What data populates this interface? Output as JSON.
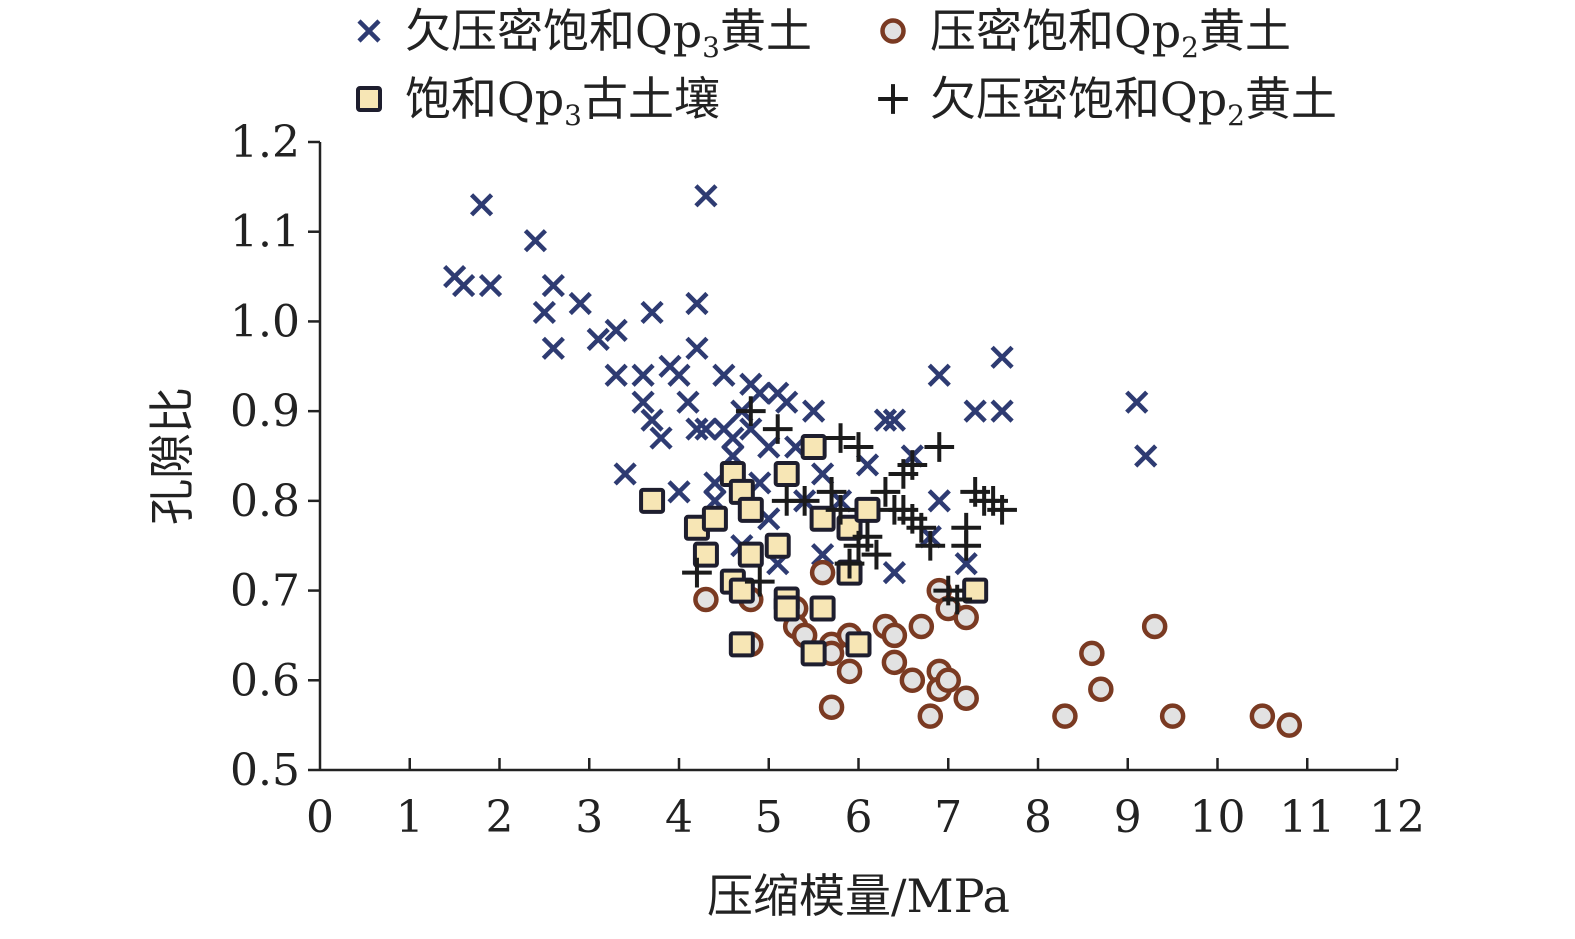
{
  "chart_data": {
    "type": "scatter",
    "xlabel": "压缩模量/MPa",
    "ylabel": "孔隙比",
    "xlim": [
      0,
      12
    ],
    "ylim": [
      0.5,
      1.2
    ],
    "x_ticks": [
      "0",
      "1",
      "2",
      "3",
      "4",
      "5",
      "6",
      "7",
      "8",
      "9",
      "10",
      "11",
      "12"
    ],
    "y_ticks": [
      "0.5",
      "0.6",
      "0.7",
      "0.8",
      "0.9",
      "1.0",
      "1.1",
      "1.2"
    ],
    "grid": false,
    "legend_position": "top",
    "series": [
      {
        "name": "欠压密饱和Qp3黄土",
        "legend": {
          "main": "欠压密饱和Qp",
          "sub": "3",
          "tail": "黄土"
        },
        "marker": "x",
        "color": "#2e3b72",
        "points": [
          [
            1.5,
            1.05
          ],
          [
            1.6,
            1.04
          ],
          [
            1.8,
            1.13
          ],
          [
            1.9,
            1.04
          ],
          [
            2.4,
            1.09
          ],
          [
            2.5,
            1.01
          ],
          [
            2.6,
            1.04
          ],
          [
            2.6,
            0.97
          ],
          [
            2.9,
            1.02
          ],
          [
            3.1,
            0.98
          ],
          [
            3.3,
            0.99
          ],
          [
            3.3,
            0.94
          ],
          [
            3.4,
            0.83
          ],
          [
            3.6,
            0.94
          ],
          [
            3.6,
            0.91
          ],
          [
            3.7,
            1.01
          ],
          [
            3.7,
            0.89
          ],
          [
            3.8,
            0.87
          ],
          [
            3.9,
            0.95
          ],
          [
            4.0,
            0.94
          ],
          [
            4.0,
            0.81
          ],
          [
            4.1,
            0.91
          ],
          [
            4.2,
            0.88
          ],
          [
            4.2,
            1.02
          ],
          [
            4.2,
            0.97
          ],
          [
            4.3,
            1.14
          ],
          [
            4.3,
            0.88
          ],
          [
            4.4,
            0.82
          ],
          [
            4.4,
            0.8
          ],
          [
            4.5,
            0.94
          ],
          [
            4.5,
            0.88
          ],
          [
            4.6,
            0.87
          ],
          [
            4.6,
            0.85
          ],
          [
            4.7,
            0.9
          ],
          [
            4.7,
            0.75
          ],
          [
            4.8,
            0.93
          ],
          [
            4.8,
            0.88
          ],
          [
            4.9,
            0.92
          ],
          [
            4.9,
            0.82
          ],
          [
            5.0,
            0.86
          ],
          [
            5.0,
            0.78
          ],
          [
            5.1,
            0.92
          ],
          [
            5.1,
            0.73
          ],
          [
            5.2,
            0.91
          ],
          [
            5.3,
            0.86
          ],
          [
            5.4,
            0.8
          ],
          [
            5.5,
            0.9
          ],
          [
            5.6,
            0.83
          ],
          [
            5.6,
            0.74
          ],
          [
            5.8,
            0.8
          ],
          [
            6.1,
            0.84
          ],
          [
            6.3,
            0.89
          ],
          [
            6.4,
            0.89
          ],
          [
            6.4,
            0.72
          ],
          [
            6.6,
            0.85
          ],
          [
            6.8,
            0.76
          ],
          [
            6.9,
            0.94
          ],
          [
            6.9,
            0.8
          ],
          [
            7.2,
            0.73
          ],
          [
            7.3,
            0.9
          ],
          [
            7.6,
            0.96
          ],
          [
            7.6,
            0.9
          ],
          [
            9.1,
            0.91
          ],
          [
            9.2,
            0.85
          ]
        ]
      },
      {
        "name": "压密饱和Qp2黄土",
        "legend": {
          "main": "压密饱和Qp",
          "sub": "2",
          "tail": "黄土"
        },
        "marker": "circle",
        "color": "#7a3a22",
        "points": [
          [
            4.3,
            0.69
          ],
          [
            4.8,
            0.69
          ],
          [
            4.8,
            0.64
          ],
          [
            5.3,
            0.68
          ],
          [
            5.3,
            0.66
          ],
          [
            5.4,
            0.65
          ],
          [
            5.6,
            0.72
          ],
          [
            5.7,
            0.64
          ],
          [
            5.7,
            0.63
          ],
          [
            5.7,
            0.57
          ],
          [
            5.9,
            0.65
          ],
          [
            5.9,
            0.61
          ],
          [
            6.3,
            0.66
          ],
          [
            6.4,
            0.65
          ],
          [
            6.4,
            0.62
          ],
          [
            6.6,
            0.6
          ],
          [
            6.7,
            0.66
          ],
          [
            6.8,
            0.56
          ],
          [
            6.9,
            0.7
          ],
          [
            6.9,
            0.61
          ],
          [
            6.9,
            0.59
          ],
          [
            7.0,
            0.68
          ],
          [
            7.0,
            0.6
          ],
          [
            7.2,
            0.67
          ],
          [
            7.2,
            0.58
          ],
          [
            8.3,
            0.56
          ],
          [
            8.6,
            0.63
          ],
          [
            8.7,
            0.59
          ],
          [
            9.3,
            0.66
          ],
          [
            9.5,
            0.56
          ],
          [
            10.5,
            0.56
          ],
          [
            10.8,
            0.55
          ]
        ]
      },
      {
        "name": "饱和Qp3古土壤",
        "legend": {
          "main": "饱和Qp",
          "sub": "3",
          "tail": "古土壤"
        },
        "marker": "square",
        "color": "#1e1e2e",
        "fill": "#f7e6b5",
        "points": [
          [
            3.7,
            0.8
          ],
          [
            4.2,
            0.77
          ],
          [
            4.3,
            0.74
          ],
          [
            4.4,
            0.78
          ],
          [
            4.6,
            0.83
          ],
          [
            4.6,
            0.71
          ],
          [
            4.7,
            0.81
          ],
          [
            4.7,
            0.7
          ],
          [
            4.7,
            0.64
          ],
          [
            4.8,
            0.79
          ],
          [
            4.8,
            0.74
          ],
          [
            5.1,
            0.75
          ],
          [
            5.2,
            0.83
          ],
          [
            5.2,
            0.69
          ],
          [
            5.2,
            0.68
          ],
          [
            5.5,
            0.86
          ],
          [
            5.5,
            0.63
          ],
          [
            5.6,
            0.78
          ],
          [
            5.6,
            0.68
          ],
          [
            5.9,
            0.77
          ],
          [
            5.9,
            0.72
          ],
          [
            6.0,
            0.64
          ],
          [
            6.1,
            0.79
          ],
          [
            7.3,
            0.7
          ]
        ]
      },
      {
        "name": "欠压密饱和Qp2黄土",
        "legend": {
          "main": "欠压密饱和Qp",
          "sub": "2",
          "tail": "黄土"
        },
        "marker": "plus",
        "color": "#1b1b1b",
        "points": [
          [
            4.2,
            0.72
          ],
          [
            4.8,
            0.9
          ],
          [
            4.9,
            0.71
          ],
          [
            5.1,
            0.88
          ],
          [
            5.2,
            0.8
          ],
          [
            5.4,
            0.8
          ],
          [
            5.7,
            0.81
          ],
          [
            5.8,
            0.87
          ],
          [
            5.8,
            0.79
          ],
          [
            5.9,
            0.73
          ],
          [
            6.0,
            0.86
          ],
          [
            6.0,
            0.75
          ],
          [
            6.1,
            0.76
          ],
          [
            6.2,
            0.74
          ],
          [
            6.3,
            0.81
          ],
          [
            6.4,
            0.79
          ],
          [
            6.5,
            0.83
          ],
          [
            6.5,
            0.79
          ],
          [
            6.6,
            0.84
          ],
          [
            6.6,
            0.78
          ],
          [
            6.7,
            0.77
          ],
          [
            6.8,
            0.75
          ],
          [
            6.9,
            0.86
          ],
          [
            7.0,
            0.7
          ],
          [
            7.1,
            0.69
          ],
          [
            7.2,
            0.77
          ],
          [
            7.2,
            0.75
          ],
          [
            7.3,
            0.81
          ],
          [
            7.4,
            0.8
          ],
          [
            7.5,
            0.8
          ],
          [
            7.6,
            0.79
          ]
        ]
      }
    ]
  }
}
